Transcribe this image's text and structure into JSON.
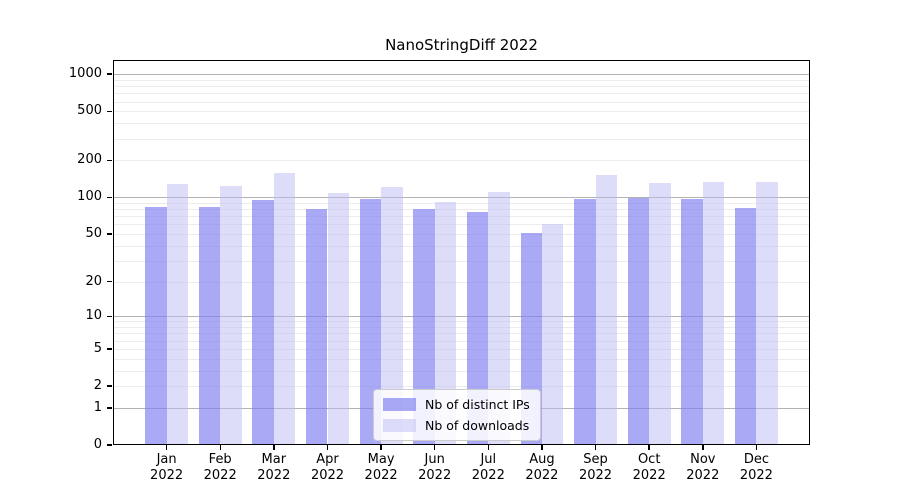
{
  "chart_data": {
    "type": "bar",
    "title": "NanoStringDiff 2022",
    "categories": [
      "Jan",
      "Feb",
      "Mar",
      "Apr",
      "May",
      "Jun",
      "Jul",
      "Aug",
      "Sep",
      "Oct",
      "Nov",
      "Dec"
    ],
    "category_year": "2022",
    "series": [
      {
        "name": "Nb of distinct IPs",
        "color": "#7d7df0",
        "opacity": 0.66,
        "color_on_white": "#a9a9f5",
        "values": [
          83,
          83,
          95,
          80,
          96,
          81,
          76,
          51,
          97,
          99,
          97,
          82
        ]
      },
      {
        "name": "Nb of downloads",
        "color": "#bbbbf3",
        "opacity": 0.5,
        "color_on_white": "#ddddf9",
        "values": [
          129,
          124,
          159,
          108,
          121,
          92,
          111,
          61,
          152,
          132,
          134,
          134
        ]
      }
    ],
    "y_axis": {
      "scale": "log10(1+x)",
      "tick_values": [
        0,
        1,
        2,
        5,
        10,
        20,
        50,
        100,
        200,
        500,
        1000
      ],
      "tick_labels": [
        "0",
        "1",
        "2",
        "5",
        "10",
        "20",
        "50",
        "100",
        "200",
        "500",
        "1000"
      ],
      "top_value": 1300,
      "major_gridlines": [
        1,
        10,
        100,
        1000
      ],
      "minor_gridlines": [
        2,
        3,
        4,
        5,
        6,
        7,
        8,
        9,
        20,
        30,
        40,
        50,
        60,
        70,
        80,
        90,
        200,
        300,
        400,
        500,
        600,
        700,
        800,
        900
      ],
      "major_grid_color": "#b3b3b3",
      "minor_grid_color": "#ececec"
    },
    "legend": {
      "position": "lower center"
    },
    "grid": true,
    "background": "#ffffff",
    "axis_color": "#000000"
  }
}
